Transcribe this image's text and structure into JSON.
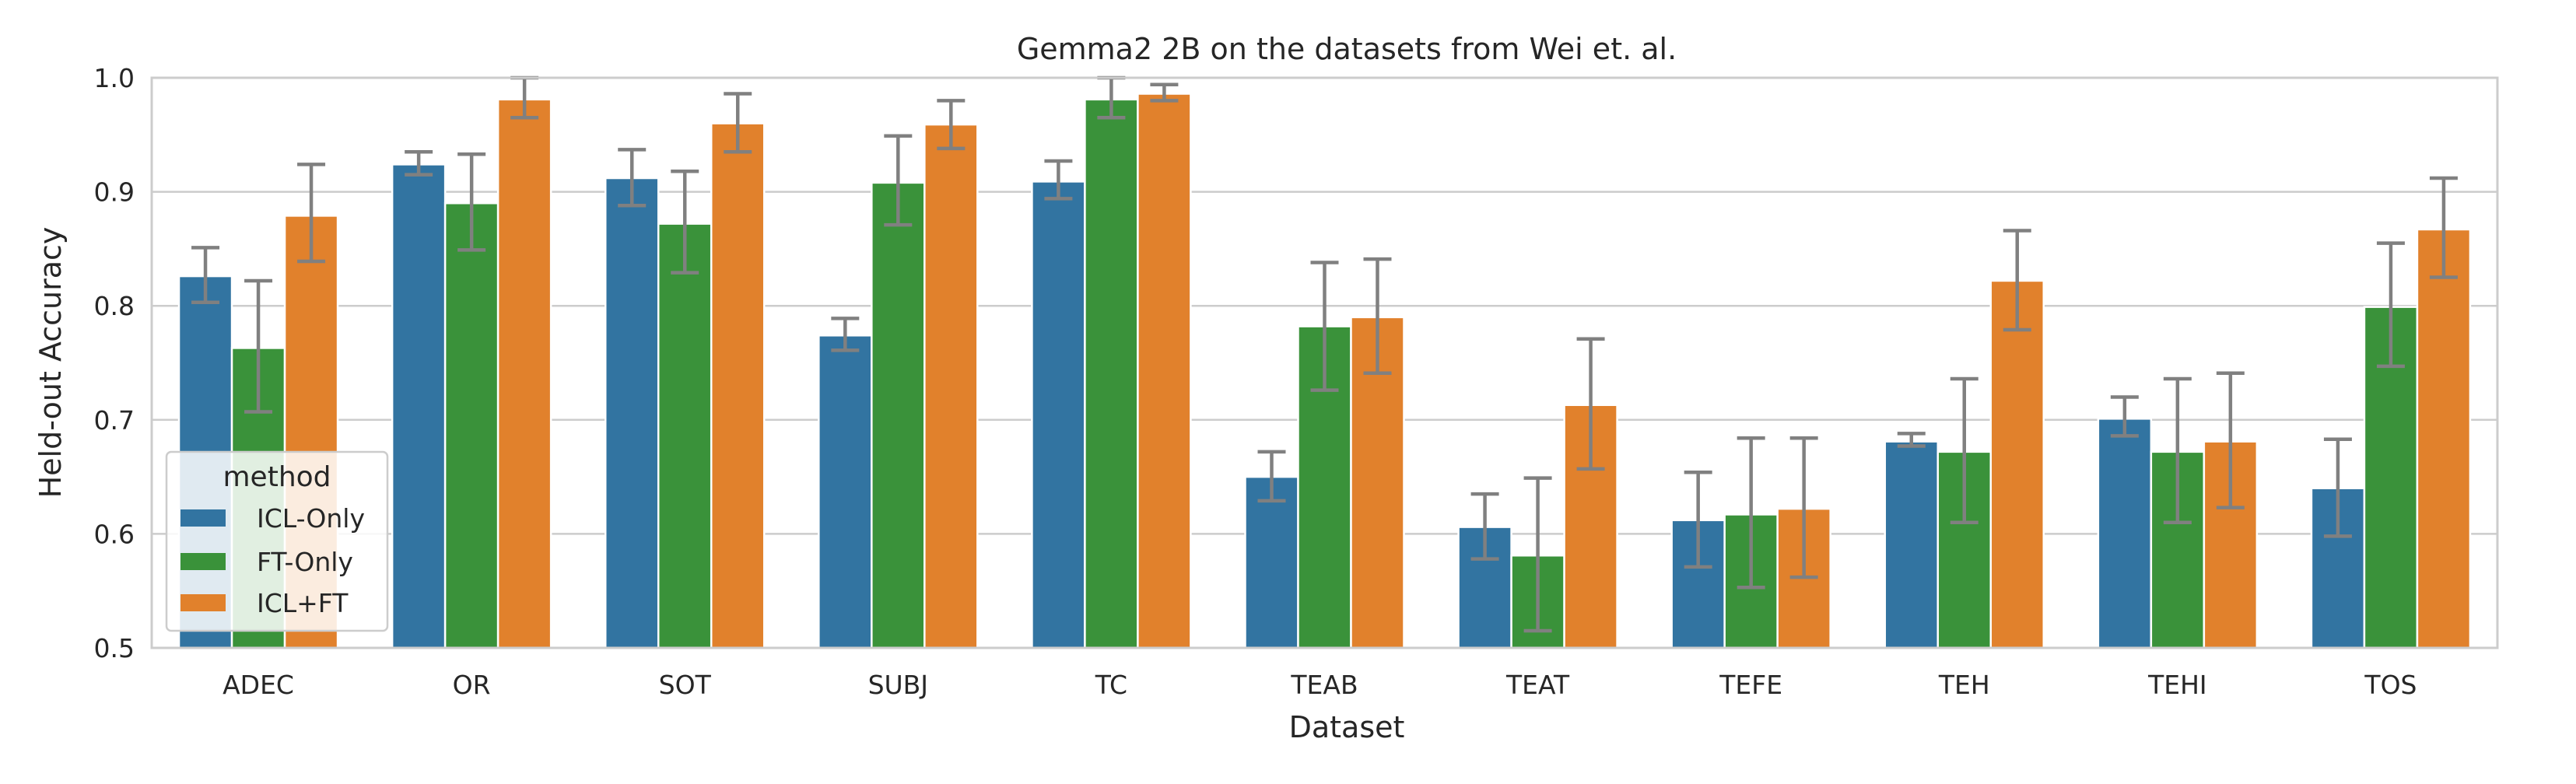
{
  "chart_data": {
    "type": "bar",
    "title": "Gemma2 2B on the datasets from Wei et. al.",
    "xlabel": "Dataset",
    "ylabel": "Held-out Accuracy",
    "ylim": [
      0.5,
      1.0
    ],
    "yticks": [
      0.5,
      0.6,
      0.7,
      0.8,
      0.9,
      1.0
    ],
    "ytick_labels": [
      "0.5",
      "0.6",
      "0.7",
      "0.8",
      "0.9",
      "1.0"
    ],
    "grid": true,
    "categories": [
      "ADEC",
      "OR",
      "SOT",
      "SUBJ",
      "TC",
      "TEAB",
      "TEAT",
      "TEFE",
      "TEH",
      "TEHI",
      "TOS"
    ],
    "legend": {
      "title": "method",
      "location": "lower-left"
    },
    "series": [
      {
        "name": "ICL-Only",
        "color": "#3274a1",
        "values": [
          0.826,
          0.924,
          0.912,
          0.774,
          0.909,
          0.65,
          0.606,
          0.612,
          0.681,
          0.701,
          0.64
        ],
        "err_low": [
          0.803,
          0.915,
          0.888,
          0.761,
          0.894,
          0.629,
          0.578,
          0.571,
          0.677,
          0.686,
          0.598
        ],
        "err_high": [
          0.851,
          0.935,
          0.937,
          0.789,
          0.927,
          0.672,
          0.635,
          0.654,
          0.688,
          0.72,
          0.683
        ]
      },
      {
        "name": "FT-Only",
        "color": "#3a923a",
        "values": [
          0.763,
          0.89,
          0.872,
          0.908,
          0.981,
          0.782,
          0.581,
          0.617,
          0.672,
          0.672,
          0.799
        ],
        "err_low": [
          0.707,
          0.849,
          0.829,
          0.871,
          0.965,
          0.726,
          0.515,
          0.553,
          0.61,
          0.61,
          0.747
        ],
        "err_high": [
          0.822,
          0.933,
          0.918,
          0.949,
          1.0,
          0.838,
          0.649,
          0.684,
          0.736,
          0.736,
          0.855
        ]
      },
      {
        "name": "ICL+FT",
        "color": "#e1812c",
        "values": [
          0.879,
          0.981,
          0.96,
          0.959,
          0.986,
          0.79,
          0.713,
          0.622,
          0.822,
          0.681,
          0.867
        ],
        "err_low": [
          0.839,
          0.965,
          0.935,
          0.938,
          0.98,
          0.741,
          0.657,
          0.562,
          0.779,
          0.623,
          0.825
        ],
        "err_high": [
          0.924,
          1.0,
          0.986,
          0.98,
          0.994,
          0.841,
          0.771,
          0.684,
          0.866,
          0.741,
          0.912
        ]
      }
    ]
  }
}
